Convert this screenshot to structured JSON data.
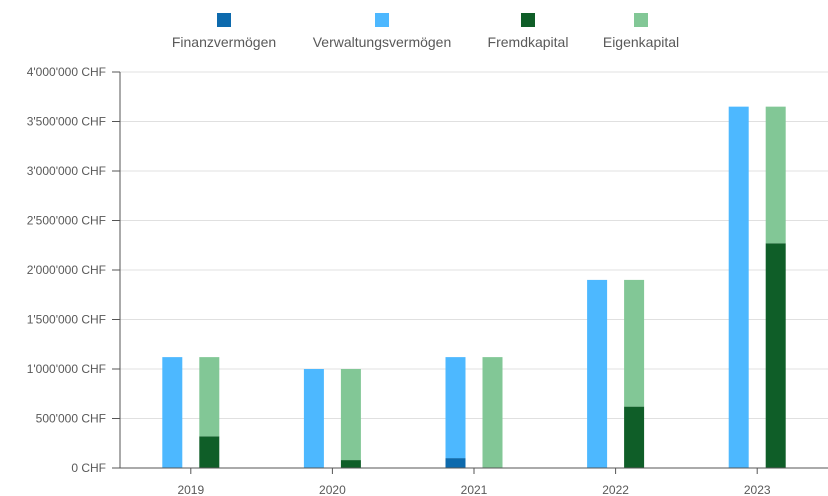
{
  "chart_data": {
    "type": "bar",
    "stacked_groups": true,
    "categories": [
      "2019",
      "2020",
      "2021",
      "2022",
      "2023"
    ],
    "series": [
      {
        "name": "Finanzvermögen",
        "stack": "assets",
        "color": "#0d6aad",
        "values": [
          0,
          0,
          100000,
          0,
          0
        ]
      },
      {
        "name": "Verwaltungsvermögen",
        "stack": "assets",
        "color": "#4db8ff",
        "values": [
          1120000,
          1000000,
          1020000,
          1900000,
          3650000
        ]
      },
      {
        "name": "Fremdkapital",
        "stack": "liabilities",
        "color": "#0f5e28",
        "values": [
          320000,
          80000,
          0,
          620000,
          2270000
        ]
      },
      {
        "name": "Eigenkapital",
        "stack": "liabilities",
        "color": "#82c796",
        "values": [
          800000,
          920000,
          1120000,
          1280000,
          1380000
        ]
      }
    ],
    "ylim": [
      0,
      4000000
    ],
    "yticks": [
      0,
      500000,
      1000000,
      1500000,
      2000000,
      2500000,
      3000000,
      3500000,
      4000000
    ],
    "ytick_labels": [
      "0 CHF",
      "500'000 CHF",
      "1'000'000 CHF",
      "1'500'000 CHF",
      "2'000'000 CHF",
      "2'500'000 CHF",
      "3'000'000 CHF",
      "3'500'000 CHF",
      "4'000'000 CHF"
    ],
    "grid": true,
    "legend_position": "top"
  }
}
